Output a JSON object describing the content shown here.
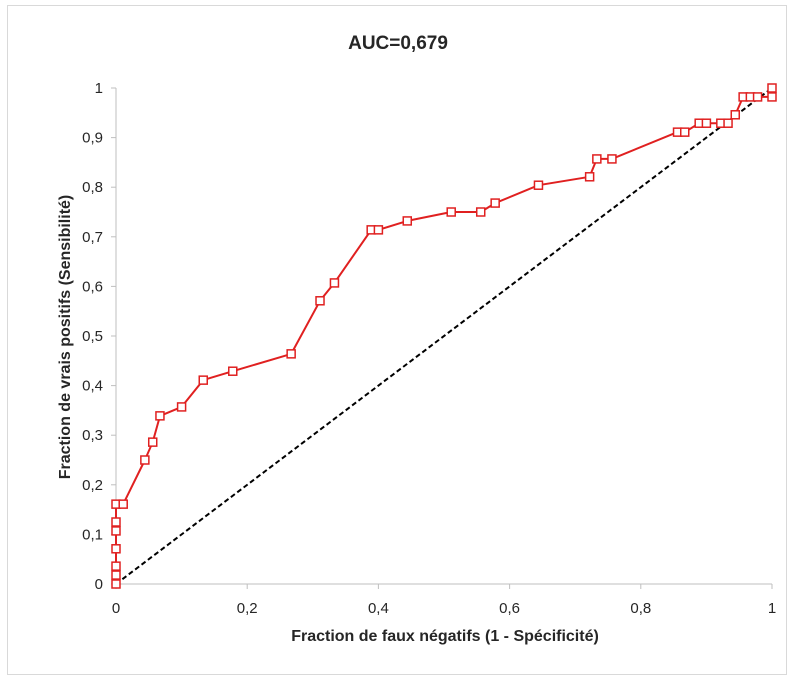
{
  "chart_data": {
    "type": "line",
    "title": "AUC=0,679",
    "xlabel": "Fraction de faux négatifs (1 - Spécificité)",
    "ylabel": "Fraction de vrais positifs (Sensibilité)",
    "xlim": [
      0,
      1
    ],
    "ylim": [
      0,
      1
    ],
    "x_ticks": [
      "0",
      "0,2",
      "0,4",
      "0,6",
      "0,8",
      "1"
    ],
    "y_ticks": [
      "0",
      "0,1",
      "0,2",
      "0,3",
      "0,4",
      "0,5",
      "0,6",
      "0,7",
      "0,8",
      "0,9",
      "1"
    ],
    "grid": false,
    "legend": "none",
    "series": [
      {
        "color": "#e02020",
        "marker": "hollow-square",
        "points": [
          [
            0,
            0
          ],
          [
            0,
            0.018
          ],
          [
            0,
            0.036
          ],
          [
            0,
            0.071
          ],
          [
            0,
            0.107
          ],
          [
            0,
            0.125
          ],
          [
            0,
            0.161
          ],
          [
            0.011,
            0.161
          ],
          [
            0.044,
            0.25
          ],
          [
            0.056,
            0.286
          ],
          [
            0.067,
            0.339
          ],
          [
            0.1,
            0.357
          ],
          [
            0.133,
            0.411
          ],
          [
            0.178,
            0.429
          ],
          [
            0.267,
            0.464
          ],
          [
            0.311,
            0.571
          ],
          [
            0.333,
            0.607
          ],
          [
            0.389,
            0.714
          ],
          [
            0.4,
            0.714
          ],
          [
            0.444,
            0.732
          ],
          [
            0.511,
            0.75
          ],
          [
            0.556,
            0.75
          ],
          [
            0.578,
            0.768
          ],
          [
            0.644,
            0.804
          ],
          [
            0.722,
            0.821
          ],
          [
            0.733,
            0.857
          ],
          [
            0.756,
            0.857
          ],
          [
            0.856,
            0.911
          ],
          [
            0.867,
            0.911
          ],
          [
            0.889,
            0.929
          ],
          [
            0.9,
            0.929
          ],
          [
            0.922,
            0.929
          ],
          [
            0.933,
            0.929
          ],
          [
            0.944,
            0.946
          ],
          [
            0.956,
            0.982
          ],
          [
            0.967,
            0.982
          ],
          [
            0.978,
            0.982
          ],
          [
            1,
            0.982
          ],
          [
            1,
            1
          ]
        ]
      },
      {
        "color": "#000000",
        "style": "dashed",
        "points": [
          [
            0,
            0
          ],
          [
            1,
            1
          ]
        ]
      }
    ]
  }
}
